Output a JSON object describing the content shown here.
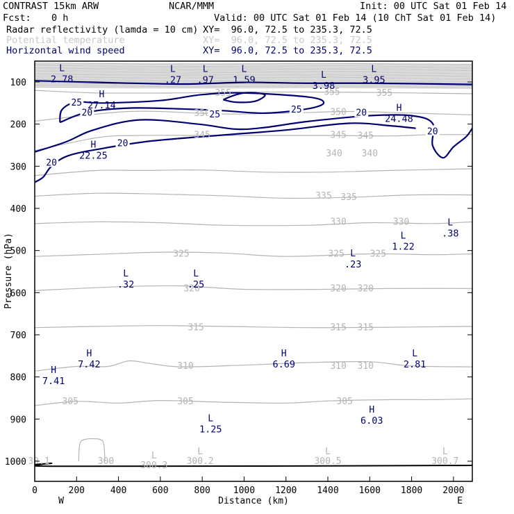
{
  "header": {
    "title": "CONTRAST 15km ARW",
    "center": "NCAR/MMM",
    "init": "Init: 00 UTC Sat 01 Feb 14",
    "fcst_label": "Fcst:",
    "fcst_value": "0 h",
    "valid": "Valid: 00 UTC Sat 01 Feb 14 (10 ChT Sat 01 Feb 14)",
    "fields": [
      {
        "name": "Radar reflectivity (lamda = 10 cm)",
        "xy": "XY=  96.0, 72.5 to 235.3, 72.5",
        "color": "#000000"
      },
      {
        "name": "Potential temperature",
        "xy": "XY=  96.0, 72.5 to 235.3, 72.5",
        "color": "#c8c8c8"
      },
      {
        "name": "Horizontal wind speed",
        "xy": "XY=  96.0, 72.5 to 235.3, 72.5",
        "color": "#000070"
      }
    ]
  },
  "chart_data": {
    "type": "contour",
    "xlabel": "Distance (km)",
    "ylabel": "Pressure (hPa)",
    "xlim": [
      0,
      2090
    ],
    "x_ticks": [
      0,
      200,
      400,
      600,
      800,
      1000,
      1200,
      1400,
      1600,
      1800,
      2000
    ],
    "y_ticks": [
      100,
      200,
      300,
      400,
      500,
      600,
      700,
      800,
      900,
      1000
    ],
    "x_end_labels": {
      "left": "W",
      "right": "E"
    },
    "colors": {
      "theta": "#b4b4b4",
      "wind": "#000070",
      "terrain": "#000000",
      "axes": "#000000"
    },
    "theta_contours": [
      {
        "label": "355",
        "points": [
          [
            0,
            120
          ],
          [
            300,
            126
          ],
          [
            700,
            126
          ],
          [
            1000,
            124
          ],
          [
            1400,
            124
          ],
          [
            1800,
            126
          ],
          [
            2090,
            128
          ]
        ]
      },
      {
        "label": "350",
        "points": [
          [
            0,
            193
          ],
          [
            300,
            176
          ],
          [
            450,
            170
          ],
          [
            600,
            170
          ],
          [
            900,
            176
          ],
          [
            1200,
            174
          ],
          [
            1500,
            170
          ],
          [
            1800,
            174
          ],
          [
            2090,
            178
          ]
        ]
      },
      {
        "label": "345",
        "points": [
          [
            0,
            263
          ],
          [
            300,
            232
          ],
          [
            500,
            227
          ],
          [
            800,
            227
          ],
          [
            1100,
            227
          ],
          [
            1400,
            227
          ],
          [
            1700,
            228
          ],
          [
            1900,
            225
          ],
          [
            2090,
            225
          ]
        ]
      },
      {
        "label": "340",
        "points": [
          [
            0,
            322
          ],
          [
            300,
            310
          ],
          [
            500,
            310
          ],
          [
            800,
            309
          ],
          [
            1100,
            314
          ],
          [
            1400,
            314
          ],
          [
            1700,
            310
          ],
          [
            2090,
            306
          ]
        ]
      },
      {
        "label": "335",
        "points": [
          [
            0,
            371
          ],
          [
            300,
            364
          ],
          [
            600,
            366
          ],
          [
            900,
            370
          ],
          [
            1200,
            376
          ],
          [
            1500,
            374
          ],
          [
            1800,
            368
          ],
          [
            2090,
            368
          ]
        ]
      },
      {
        "label": "330",
        "points": [
          [
            0,
            436
          ],
          [
            300,
            432
          ],
          [
            600,
            434
          ],
          [
            900,
            440
          ],
          [
            1300,
            440
          ],
          [
            1600,
            434
          ],
          [
            1900,
            436
          ],
          [
            2090,
            432
          ]
        ]
      },
      {
        "label": "325",
        "points": [
          [
            0,
            514
          ],
          [
            300,
            509
          ],
          [
            600,
            504
          ],
          [
            900,
            506
          ],
          [
            1200,
            514
          ],
          [
            1600,
            508
          ],
          [
            1900,
            510
          ],
          [
            2090,
            508
          ]
        ]
      },
      {
        "label": "320",
        "points": [
          [
            0,
            595
          ],
          [
            400,
            586
          ],
          [
            700,
            584
          ],
          [
            1000,
            592
          ],
          [
            1400,
            592
          ],
          [
            1700,
            590
          ],
          [
            2090,
            590
          ]
        ]
      },
      {
        "label": "315",
        "points": [
          [
            0,
            683
          ],
          [
            300,
            680
          ],
          [
            600,
            678
          ],
          [
            900,
            680
          ],
          [
            1300,
            683
          ],
          [
            1700,
            682
          ],
          [
            2090,
            680
          ]
        ]
      },
      {
        "label": "310",
        "points": [
          [
            0,
            786
          ],
          [
            200,
            775
          ],
          [
            350,
            775
          ],
          [
            450,
            762
          ],
          [
            550,
            768
          ],
          [
            700,
            776
          ],
          [
            1000,
            772
          ],
          [
            1300,
            766
          ],
          [
            1600,
            764
          ],
          [
            1800,
            774
          ],
          [
            2090,
            776
          ]
        ]
      },
      {
        "label": "305",
        "points": [
          [
            0,
            868
          ],
          [
            200,
            858
          ],
          [
            400,
            862
          ],
          [
            600,
            856
          ],
          [
            900,
            860
          ],
          [
            1200,
            862
          ],
          [
            1400,
            857
          ],
          [
            1700,
            854
          ],
          [
            1900,
            854
          ],
          [
            2090,
            852
          ]
        ]
      },
      {
        "label": "300",
        "points": [
          [
            210,
            1000
          ],
          [
            215,
            960
          ],
          [
            240,
            948
          ],
          [
            310,
            948
          ],
          [
            330,
            960
          ],
          [
            335,
            1000
          ]
        ]
      }
    ],
    "wind_contours": [
      {
        "label": "20",
        "points": [
          [
            0,
            266
          ],
          [
            150,
            242
          ],
          [
            280,
            214
          ],
          [
            500,
            190
          ],
          [
            780,
            200
          ],
          [
            960,
            212
          ],
          [
            1100,
            208
          ],
          [
            1300,
            194
          ],
          [
            1600,
            180
          ],
          [
            1800,
            180
          ],
          [
            1900,
            198
          ],
          [
            1900,
            250
          ],
          [
            1950,
            280
          ],
          [
            2000,
            254
          ],
          [
            2060,
            230
          ],
          [
            2090,
            210
          ]
        ]
      },
      {
        "label": "20",
        "points": [
          [
            0,
            338
          ],
          [
            40,
            326
          ],
          [
            80,
            300
          ],
          [
            160,
            275
          ],
          [
            320,
            258
          ],
          [
            560,
            240
          ],
          [
            900,
            226
          ],
          [
            1200,
            214
          ],
          [
            1500,
            198
          ],
          [
            1700,
            204
          ],
          [
            1820,
            210
          ]
        ]
      },
      {
        "label": "25",
        "points": [
          [
            120,
            196
          ],
          [
            250,
            172
          ],
          [
            450,
            162
          ],
          [
            700,
            164
          ],
          [
            900,
            168
          ],
          [
            1100,
            174
          ],
          [
            1300,
            164
          ],
          [
            1380,
            150
          ],
          [
            1310,
            136
          ],
          [
            1000,
            126
          ],
          [
            800,
            130
          ],
          [
            600,
            144
          ],
          [
            330,
            150
          ],
          [
            200,
            148
          ],
          [
            130,
            166
          ],
          [
            120,
            196
          ]
        ]
      },
      {
        "label": "",
        "points": [
          [
            900,
            142
          ],
          [
            950,
            132
          ],
          [
            1000,
            126
          ],
          [
            1060,
            126
          ],
          [
            1100,
            132
          ],
          [
            1050,
            146
          ],
          [
            960,
            148
          ],
          [
            900,
            142
          ]
        ]
      },
      {
        "label": "",
        "points": [
          [
            0,
            97
          ],
          [
            300,
            101
          ],
          [
            700,
            105
          ],
          [
            1000,
            101
          ],
          [
            1300,
            103
          ],
          [
            1600,
            103
          ],
          [
            2090,
            106
          ]
        ]
      }
    ],
    "terrain": [
      [
        0,
        1010
      ],
      [
        80,
        1005
      ],
      [
        120,
        1012
      ],
      [
        2000,
        1010
      ],
      [
        2090,
        1008
      ]
    ],
    "extrema": [
      {
        "type": "L",
        "value": "2.78",
        "x": 130,
        "p": 81
      },
      {
        "type": "L",
        "value": ".27",
        "x": 660,
        "p": 83
      },
      {
        "type": "L",
        "value": ".97",
        "x": 815,
        "p": 83
      },
      {
        "type": "L",
        "value": "1.59",
        "x": 1000,
        "p": 83
      },
      {
        "type": "L",
        "value": "3.98",
        "x": 1380,
        "p": 97
      },
      {
        "type": "L",
        "value": "3.95",
        "x": 1620,
        "p": 83
      },
      {
        "type": "H",
        "value": "27.14",
        "x": 320,
        "p": 143
      },
      {
        "type": "H",
        "value": "24.48",
        "x": 1740,
        "p": 175
      },
      {
        "type": "H",
        "value": "22.25",
        "x": 280,
        "p": 262
      },
      {
        "type": "L",
        "value": ".38",
        "x": 1985,
        "p": 447
      },
      {
        "type": "L",
        "value": "1.22",
        "x": 1760,
        "p": 478
      },
      {
        "type": "L",
        "value": ".23",
        "x": 1520,
        "p": 520
      },
      {
        "type": "L",
        "value": ".32",
        "x": 435,
        "p": 568
      },
      {
        "type": "L",
        "value": ".25",
        "x": 770,
        "p": 568
      },
      {
        "type": "H",
        "value": "7.42",
        "x": 260,
        "p": 758
      },
      {
        "type": "H",
        "value": "6.69",
        "x": 1190,
        "p": 758
      },
      {
        "type": "L",
        "value": "2.81",
        "x": 1815,
        "p": 758
      },
      {
        "type": "H",
        "value": "7.41",
        "x": 90,
        "p": 797
      },
      {
        "type": "H",
        "value": "6.03",
        "x": 1610,
        "p": 891
      },
      {
        "type": "L",
        "value": "1.25",
        "x": 840,
        "p": 912
      }
    ],
    "theta_extrema": [
      {
        "type": "L",
        "value": "300.3",
        "x": 570,
        "p": 1010
      },
      {
        "type": "L",
        "value": "300.2",
        "x": 790,
        "p": 1000
      },
      {
        "type": "L",
        "value": "300.5",
        "x": 1400,
        "p": 1000
      },
      {
        "type": "L",
        "value": "300.7",
        "x": 1960,
        "p": 1000
      },
      {
        "type": "",
        "value": "300",
        "x": 340,
        "p": 1000
      },
      {
        "type": "",
        "value": "30.1",
        "x": 20,
        "p": 1000
      }
    ]
  }
}
